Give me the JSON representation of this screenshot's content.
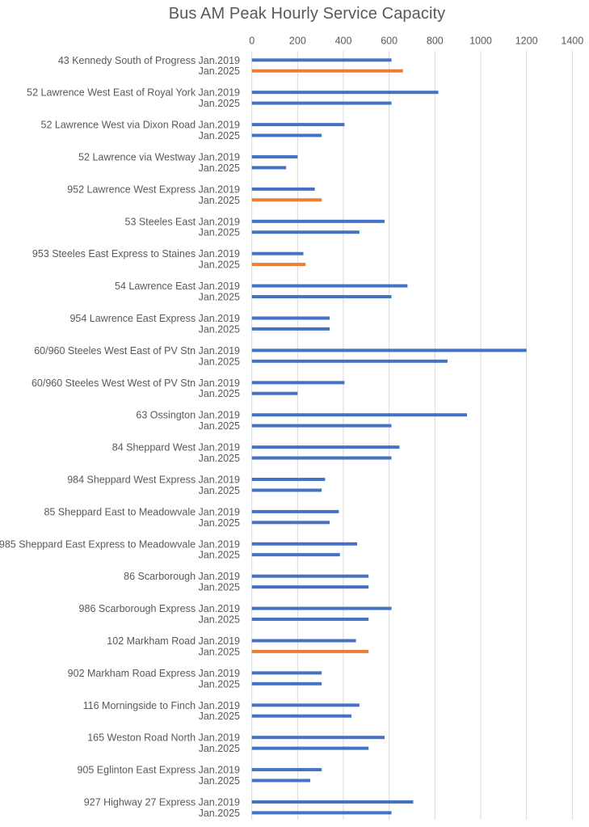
{
  "chart_data": {
    "type": "bar",
    "orientation": "horizontal",
    "title": "Bus AM Peak Hourly Service Capacity",
    "xlabel": "",
    "ylabel": "",
    "xlim": [
      0,
      1400
    ],
    "x_ticks": [
      "0",
      "200",
      "400",
      "600",
      "800",
      "1000",
      "1200",
      "1400"
    ],
    "x_axis_position": "top",
    "grid": true,
    "legend": "none",
    "colors": {
      "default": "#4472C4",
      "highlight": "#ED7D31"
    },
    "period_labels": [
      "Jan.2019",
      "Jan.2025"
    ],
    "routes": [
      {
        "name": "43 Kennedy South of Progress",
        "values": [
          610,
          660
        ],
        "highlight_2025": true
      },
      {
        "name": "52 Lawrence West East of Royal York",
        "values": [
          815,
          610
        ],
        "highlight_2025": false
      },
      {
        "name": "52 Lawrence West via Dixon Road",
        "values": [
          405,
          305
        ],
        "highlight_2025": false
      },
      {
        "name": "52 Lawrence via Westway",
        "values": [
          200,
          150
        ],
        "highlight_2025": false
      },
      {
        "name": "952 Lawrence West Express",
        "values": [
          275,
          305
        ],
        "highlight_2025": true
      },
      {
        "name": "53 Steeles East",
        "values": [
          580,
          470
        ],
        "highlight_2025": false
      },
      {
        "name": "953 Steeles East Express to Staines",
        "values": [
          225,
          235
        ],
        "highlight_2025": true
      },
      {
        "name": "54 Lawrence East",
        "values": [
          680,
          610
        ],
        "highlight_2025": false
      },
      {
        "name": "954 Lawrence East Express",
        "values": [
          340,
          340
        ],
        "highlight_2025": false
      },
      {
        "name": "60/960 Steeles West East of PV Stn",
        "values": [
          1200,
          855
        ],
        "highlight_2025": false
      },
      {
        "name": "60/960 Steeles West West of PV Stn",
        "values": [
          405,
          200
        ],
        "highlight_2025": false
      },
      {
        "name": "63 Ossington",
        "values": [
          940,
          610
        ],
        "highlight_2025": false
      },
      {
        "name": "84 Sheppard West",
        "values": [
          645,
          610
        ],
        "highlight_2025": false
      },
      {
        "name": "984 Sheppard West Express",
        "values": [
          320,
          305
        ],
        "highlight_2025": false
      },
      {
        "name": "85 Sheppard East to Meadowvale",
        "values": [
          380,
          340
        ],
        "highlight_2025": false
      },
      {
        "name": "985 Sheppard East Express to Meadowvale",
        "values": [
          460,
          385
        ],
        "highlight_2025": false
      },
      {
        "name": "86 Scarborough",
        "values": [
          510,
          510
        ],
        "highlight_2025": false
      },
      {
        "name": "986 Scarborough Express",
        "values": [
          610,
          510
        ],
        "highlight_2025": false
      },
      {
        "name": "102 Markham Road",
        "values": [
          455,
          510
        ],
        "highlight_2025": true
      },
      {
        "name": "902 Markham Road Express",
        "values": [
          305,
          305
        ],
        "highlight_2025": false
      },
      {
        "name": "116 Morningside to Finch",
        "values": [
          470,
          435
        ],
        "highlight_2025": false
      },
      {
        "name": "165 Weston Road North",
        "values": [
          580,
          510
        ],
        "highlight_2025": false
      },
      {
        "name": "905 Eglinton East Express",
        "values": [
          305,
          255
        ],
        "highlight_2025": false
      },
      {
        "name": "927 Highway 27 Express",
        "values": [
          705,
          610
        ],
        "highlight_2025": false
      }
    ]
  }
}
